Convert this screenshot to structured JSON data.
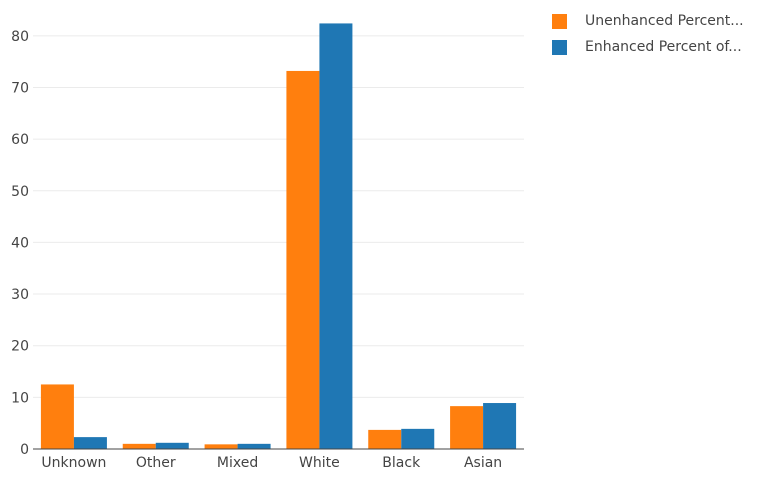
{
  "chart_data": {
    "type": "bar",
    "categories": [
      "Unknown",
      "Other",
      "Mixed",
      "White",
      "Black",
      "Asian"
    ],
    "series": [
      {
        "name": "Unenhanced Percent...",
        "color": "#ff7f0e",
        "values": [
          12.5,
          1.0,
          0.9,
          73.2,
          3.7,
          8.3
        ]
      },
      {
        "name": "Enhanced Percent of...",
        "color": "#1f77b4",
        "values": [
          2.3,
          1.2,
          1.0,
          82.4,
          3.9,
          8.9
        ]
      }
    ],
    "y_ticks": [
      "0",
      "10",
      "20",
      "30",
      "40",
      "50",
      "60",
      "70",
      "80"
    ],
    "ylim": [
      0,
      85
    ],
    "grid": true,
    "legend_position": "top-right"
  }
}
